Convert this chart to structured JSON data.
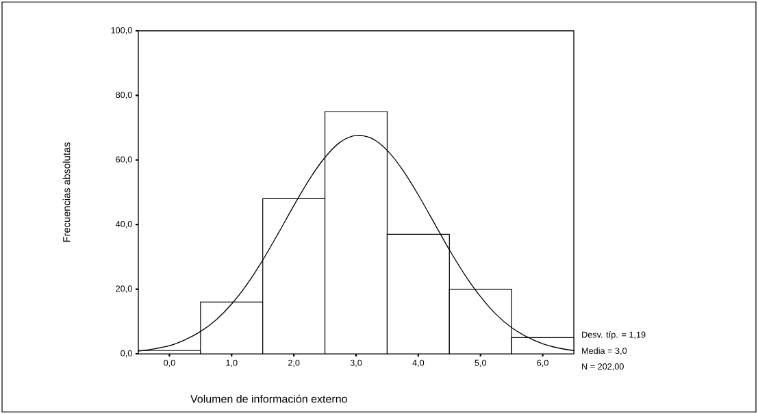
{
  "chart_data": {
    "type": "histogram",
    "xlabel": "Volumen de información externo",
    "ylabel": "Frecuencias absolutas",
    "bins": [
      -0.5,
      0.5,
      1.5,
      2.5,
      3.5,
      4.5,
      5.5,
      6.5
    ],
    "values": [
      1,
      16,
      48,
      75,
      37,
      20,
      5
    ],
    "color": "#ffffff",
    "series": [
      {
        "type": "line",
        "color": "#000000",
        "x": [
          -0.5,
          -0.25,
          0,
          0.25,
          0.5,
          0.75,
          1,
          1.25,
          1.5,
          1.75,
          2,
          2.25,
          2.5,
          2.75,
          3,
          3.25,
          3.5,
          3.75,
          4,
          4.25,
          4.5,
          4.75,
          5,
          5.25,
          5.5,
          5.75,
          6,
          6.25,
          6.5
        ],
        "values": [
          0.8,
          1.5,
          2.5,
          4.3,
          6.9,
          10.5,
          15.4,
          21.6,
          29.0,
          37.3,
          45.9,
          54.0,
          60.8,
          65.6,
          67.6,
          66.7,
          63.0,
          56.9,
          49.2,
          40.7,
          32.2,
          24.4,
          17.7,
          12.2,
          8.1,
          5.2,
          3.1,
          1.8,
          1.0
        ]
      }
    ],
    "xlim": [
      -0.5,
      6.5
    ],
    "ylim": [
      0,
      100
    ],
    "xticks": [
      {
        "value": 0,
        "label": "0,0"
      },
      {
        "value": 1,
        "label": "1,0"
      },
      {
        "value": 2,
        "label": "2,0"
      },
      {
        "value": 3,
        "label": "3,0"
      },
      {
        "value": 4,
        "label": "4,0"
      },
      {
        "value": 5,
        "label": "5,0"
      },
      {
        "value": 6,
        "label": "6,0"
      }
    ],
    "yticks": [
      {
        "value": 0,
        "label": "0,0"
      },
      {
        "value": 20,
        "label": "20,0"
      },
      {
        "value": 40,
        "label": "40,0"
      },
      {
        "value": 60,
        "label": "60,0"
      },
      {
        "value": 80,
        "label": "80,0"
      },
      {
        "value": 100,
        "label": "100,0"
      }
    ],
    "annotations": [
      "Desv. típ. = 1,19",
      "Media = 3,0",
      "N = 202,00"
    ],
    "grid": false
  }
}
